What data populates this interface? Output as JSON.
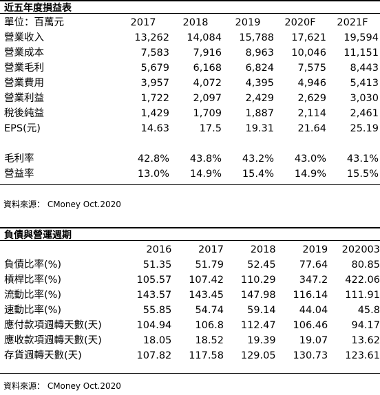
{
  "income": {
    "title": "近五年度損益表",
    "unit_label": "單位：百萬元",
    "years": [
      "2017",
      "2018",
      "2019",
      "2020F",
      "2021F"
    ],
    "rows": [
      {
        "label": "營業收入",
        "values": [
          "13,262",
          "14,084",
          "15,788",
          "17,621",
          "19,594"
        ]
      },
      {
        "label": "營業成本",
        "values": [
          "7,583",
          "7,916",
          "8,963",
          "10,046",
          "11,151"
        ]
      },
      {
        "label": "營業毛利",
        "values": [
          "5,679",
          "6,168",
          "6,824",
          "7,575",
          "8,443"
        ]
      },
      {
        "label": "營業費用",
        "values": [
          "3,957",
          "4,072",
          "4,395",
          "4,946",
          "5,413"
        ]
      },
      {
        "label": "營業利益",
        "values": [
          "1,722",
          "2,097",
          "2,429",
          "2,629",
          "3,030"
        ]
      },
      {
        "label": "稅後純益",
        "values": [
          "1,429",
          "1,709",
          "1,887",
          "2,114",
          "2,461"
        ]
      },
      {
        "label": "EPS(元)",
        "values": [
          "14.63",
          "17.5",
          "19.31",
          "21.64",
          "25.19"
        ]
      }
    ],
    "ratio_rows": [
      {
        "label": "毛利率",
        "values": [
          "42.8%",
          "43.8%",
          "43.2%",
          "43.0%",
          "43.1%"
        ]
      },
      {
        "label": "營益率",
        "values": [
          "13.0%",
          "14.9%",
          "15.4%",
          "14.9%",
          "15.5%"
        ]
      }
    ],
    "source": "資料來源： CMoney Oct.2020"
  },
  "debt": {
    "title": "負債與營運週期",
    "years": [
      "2016",
      "2017",
      "2018",
      "2019",
      "202003"
    ],
    "rows": [
      {
        "label": "負債比率(%)",
        "values": [
          "51.35",
          "51.79",
          "52.45",
          "77.64",
          "80.85"
        ]
      },
      {
        "label": "槓桿比率(%)",
        "values": [
          "105.57",
          "107.42",
          "110.29",
          "347.2",
          "422.06"
        ]
      },
      {
        "label": "流動比率(%)",
        "values": [
          "143.57",
          "143.45",
          "147.98",
          "116.14",
          "111.91"
        ]
      },
      {
        "label": "速動比率(%)",
        "values": [
          "55.85",
          "54.74",
          "59.14",
          "44.04",
          "45.8"
        ]
      },
      {
        "label": "應付款項週轉天數(天)",
        "values": [
          "104.94",
          "106.8",
          "112.47",
          "106.46",
          "94.17"
        ]
      },
      {
        "label": "應收款項週轉天數(天)",
        "values": [
          "18.05",
          "18.52",
          "19.39",
          "19.07",
          "13.62"
        ]
      },
      {
        "label": "存貨週轉天數(天)",
        "values": [
          "107.82",
          "117.58",
          "129.05",
          "130.73",
          "123.61"
        ]
      }
    ],
    "source": "資料來源： CMoney Oct.2020"
  }
}
